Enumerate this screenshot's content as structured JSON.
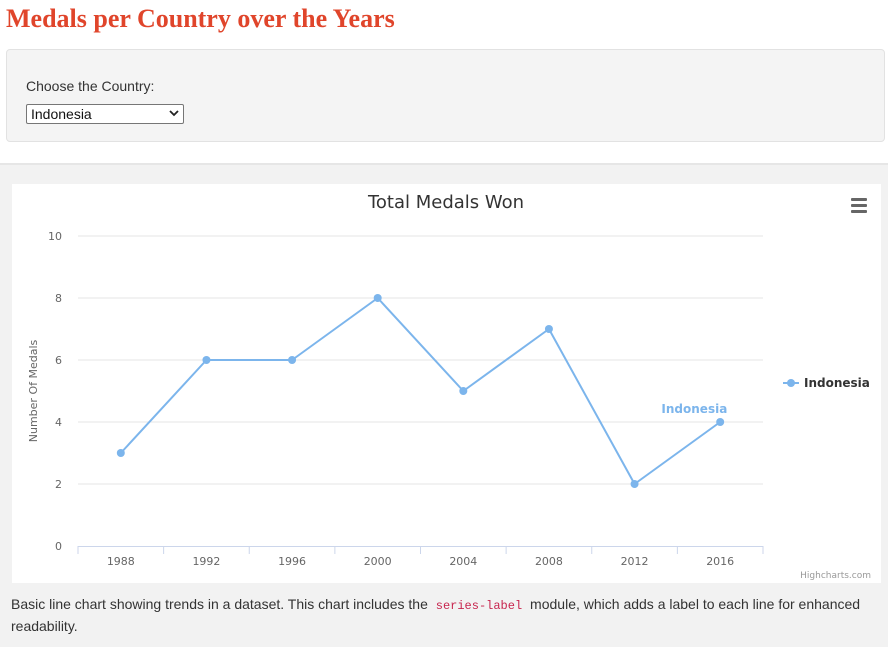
{
  "page": {
    "title": "Medals per Country over the Years"
  },
  "controls": {
    "country_label": "Choose the Country:",
    "selected_country": "Indonesia"
  },
  "chart_data": {
    "type": "line",
    "title": "Total Medals Won",
    "xlabel": "",
    "ylabel": "Number Of Medals",
    "categories": [
      "1988",
      "1992",
      "1996",
      "2000",
      "2004",
      "2008",
      "2012",
      "2016"
    ],
    "yticks": [
      "0",
      "2",
      "4",
      "6",
      "8",
      "10"
    ],
    "ylim": [
      0,
      10
    ],
    "grid": true,
    "legend_position": "right",
    "series": [
      {
        "name": "Indonesia",
        "values": [
          3,
          6,
          6,
          8,
          5,
          7,
          2,
          4
        ],
        "color": "#7cb5ec",
        "series_label": "Indonesia"
      }
    ],
    "credits": "Highcharts.com"
  },
  "description": {
    "before": "Basic line chart showing trends in a dataset. This chart includes the ",
    "code": "series-label",
    "after": " module, which adds a label to each line for enhanced readability."
  },
  "icons": {
    "menu": "hamburger-menu-icon",
    "select_arrow": "chevron-down-icon"
  }
}
